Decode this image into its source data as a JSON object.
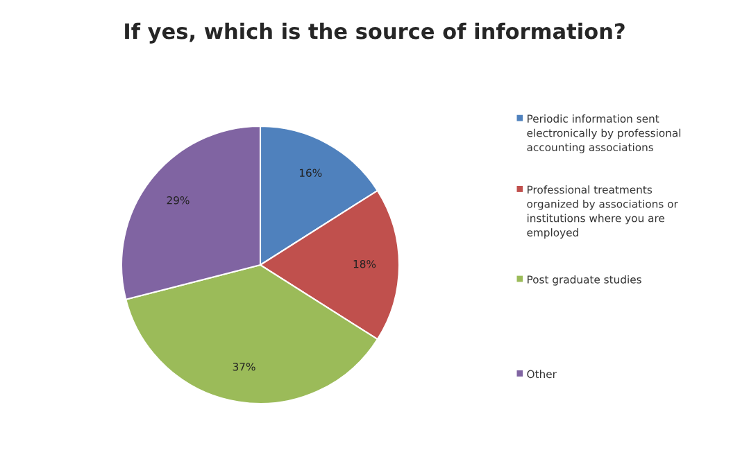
{
  "chart_data": {
    "type": "pie",
    "title": "If yes, which is the source of information?",
    "categories": [
      "Periodic information sent electronically by professional accounting associations",
      "Professional treatments organized by associations or institutions where you are employed",
      "Post graduate studies",
      "Other"
    ],
    "values": [
      16,
      18,
      37,
      29
    ],
    "value_labels": [
      "16%",
      "18%",
      "37%",
      "29%"
    ],
    "colors": [
      "#4f81bd",
      "#c0504d",
      "#9bbb59",
      "#8064a2"
    ],
    "legend": "right"
  }
}
